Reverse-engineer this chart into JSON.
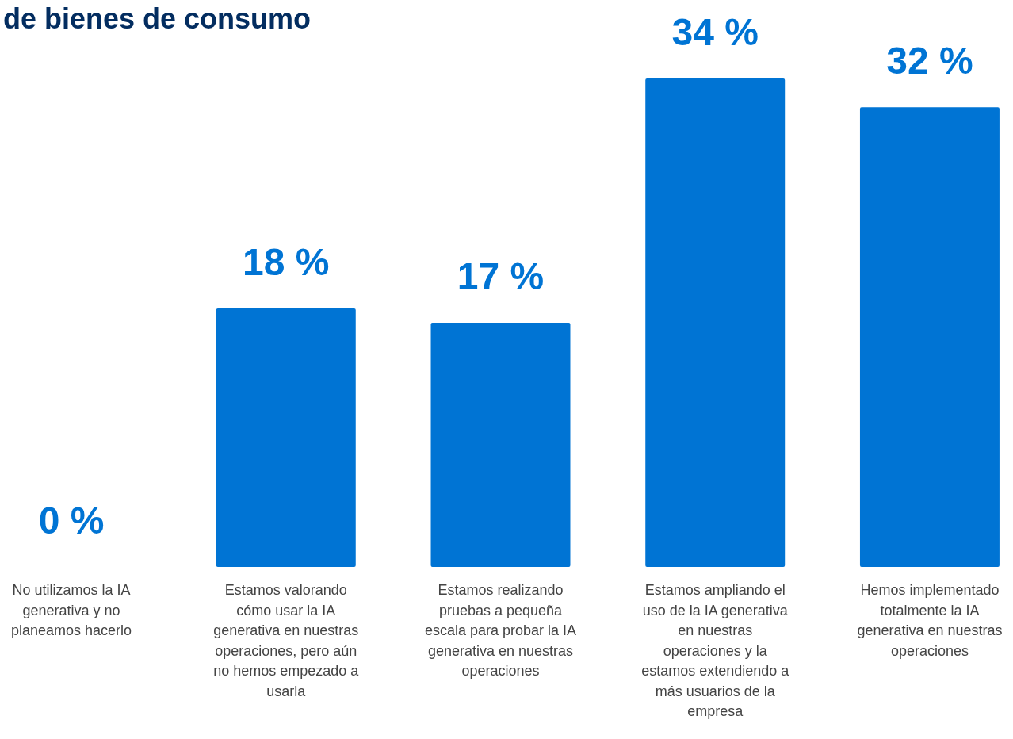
{
  "chart_data": {
    "type": "bar",
    "title": "de bienes de consumo",
    "categories": [
      "No utilizamos la IA generativa y no planeamos hacerlo",
      "Estamos valorando cómo usar la IA generativa en nuestras operaciones, pero aún no hemos empezado a usarla",
      "Estamos realizando pruebas a pequeña escala para probar la IA generativa en nuestras operaciones",
      "Estamos ampliando el uso de la IA generativa en nuestras operaciones y la estamos extendiendo a más usuarios de la empresa",
      "Hemos implementado totalmente la IA generativa en nuestras operaciones"
    ],
    "values": [
      0,
      18,
      17,
      34,
      32
    ],
    "value_labels": [
      "0 %",
      "18 %",
      "17 %",
      "34 %",
      "32 %"
    ],
    "color": "#0074d4"
  }
}
